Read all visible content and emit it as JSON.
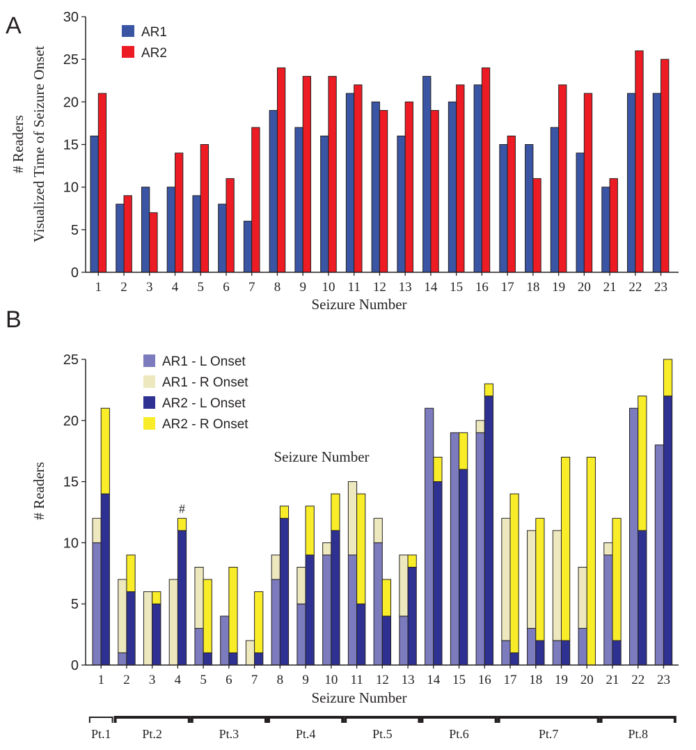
{
  "figure": {
    "panel_a_letter": "A",
    "panel_b_letter": "B"
  },
  "chart_data": [
    {
      "type": "bar",
      "panel": "A",
      "categories": [
        "1",
        "2",
        "3",
        "4",
        "5",
        "6",
        "7",
        "8",
        "9",
        "10",
        "11",
        "12",
        "13",
        "14",
        "15",
        "16",
        "17",
        "18",
        "19",
        "20",
        "21",
        "22",
        "23"
      ],
      "series": [
        {
          "name": "AR1",
          "color": "#3a55a4",
          "values": [
            16,
            8,
            10,
            10,
            9,
            8,
            6,
            19,
            17,
            16,
            21,
            20,
            16,
            23,
            20,
            22,
            15,
            15,
            17,
            14,
            10,
            21,
            21
          ]
        },
        {
          "name": "AR2",
          "color": "#ed1c24",
          "values": [
            21,
            9,
            7,
            14,
            15,
            11,
            17,
            24,
            23,
            23,
            22,
            19,
            20,
            19,
            22,
            24,
            16,
            11,
            22,
            21,
            11,
            26,
            25
          ]
        }
      ],
      "ylabel_line1": "# Readers",
      "ylabel_line2": "Visualized Time of Seizure Onset",
      "xlabel": "Seizure Number",
      "ylim": [
        0,
        30
      ],
      "yticks": [
        0,
        5,
        10,
        15,
        20,
        25,
        30
      ],
      "legend_position": "top-left",
      "grid": false
    },
    {
      "type": "bar",
      "stacked": true,
      "panel": "B",
      "categories": [
        "1",
        "2",
        "3",
        "4",
        "5",
        "6",
        "7",
        "8",
        "9",
        "10",
        "11",
        "12",
        "13",
        "14",
        "15",
        "16",
        "17",
        "18",
        "19",
        "20",
        "21",
        "22",
        "23"
      ],
      "groups": [
        {
          "name": "AR1",
          "segments": [
            {
              "name": "AR1 - L Onset",
              "color": "#7b7bbd",
              "values": [
                10,
                1,
                0,
                0,
                3,
                4,
                0,
                7,
                5,
                9,
                9,
                10,
                4,
                21,
                19,
                19,
                2,
                3,
                2,
                3,
                9,
                21,
                18
              ]
            },
            {
              "name": "AR1 - R Onset",
              "color": "#ede8be",
              "values": [
                2,
                6,
                6,
                7,
                5,
                0,
                2,
                2,
                3,
                1,
                6,
                2,
                5,
                0,
                0,
                1,
                10,
                8,
                9,
                5,
                1,
                0,
                0
              ]
            }
          ]
        },
        {
          "name": "AR2",
          "segments": [
            {
              "name": "AR2 - L Onset",
              "color": "#2e3191",
              "values": [
                14,
                6,
                5,
                11,
                1,
                1,
                1,
                12,
                9,
                11,
                5,
                4,
                8,
                15,
                16,
                22,
                1,
                2,
                2,
                0,
                2,
                11,
                22
              ]
            },
            {
              "name": "AR2 - R Onset",
              "color": "#f8ed28",
              "values": [
                7,
                3,
                1,
                1,
                6,
                7,
                5,
                1,
                4,
                3,
                9,
                3,
                1,
                2,
                3,
                1,
                13,
                10,
                15,
                17,
                10,
                11,
                3
              ]
            }
          ]
        }
      ],
      "ylabel": "# Readers",
      "xlabel": "Seizure Number",
      "inner_label": "Seizure Number",
      "annotation": {
        "text": "#",
        "category": "4"
      },
      "ylim": [
        0,
        25
      ],
      "yticks": [
        0,
        5,
        10,
        15,
        20,
        25
      ],
      "legend_position": "top-left",
      "grid": false,
      "patient_groups": [
        {
          "label": "Pt.1",
          "first": 1,
          "last": 1
        },
        {
          "label": "Pt.2",
          "first": 2,
          "last": 4
        },
        {
          "label": "Pt.3",
          "first": 5,
          "last": 7
        },
        {
          "label": "Pt.4",
          "first": 8,
          "last": 10
        },
        {
          "label": "Pt.5",
          "first": 11,
          "last": 13
        },
        {
          "label": "Pt.6",
          "first": 14,
          "last": 16
        },
        {
          "label": "Pt.7",
          "first": 17,
          "last": 20
        },
        {
          "label": "Pt.8",
          "first": 21,
          "last": 23
        }
      ]
    }
  ]
}
